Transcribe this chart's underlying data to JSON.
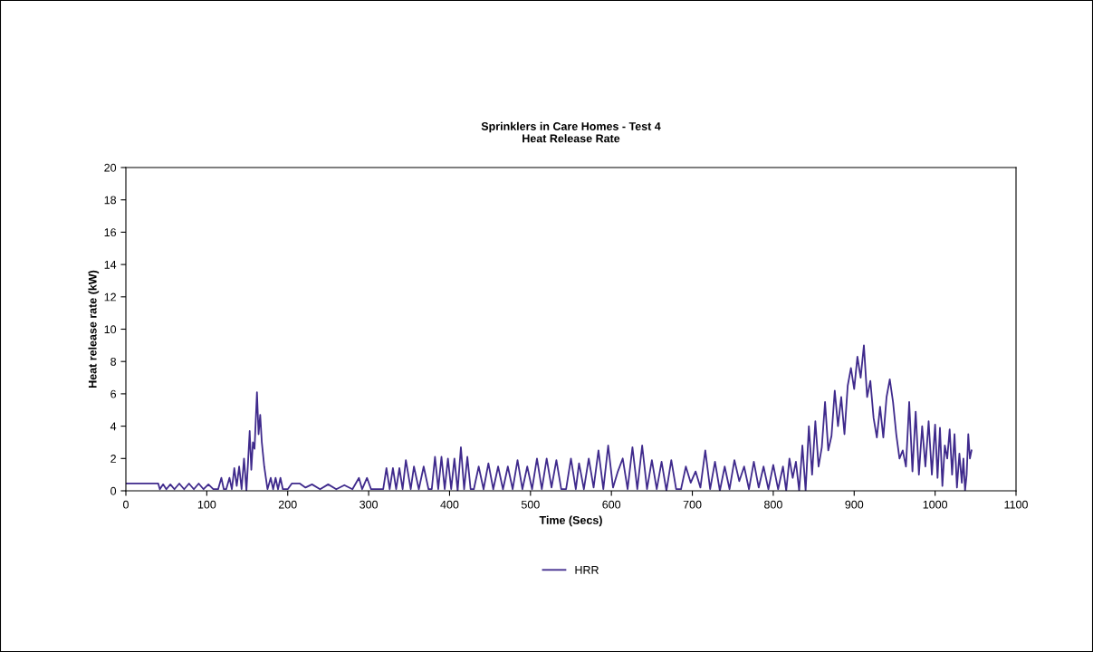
{
  "chart_data": {
    "type": "line",
    "title": "Sprinklers in Care Homes - Test 4\nHeat Release Rate",
    "xlabel": "Time (Secs)",
    "ylabel": "Heat release rate (kW)",
    "xlim": [
      0,
      1100
    ],
    "xticks": [
      0,
      100,
      200,
      300,
      400,
      500,
      600,
      700,
      800,
      900,
      1000,
      1100
    ],
    "ylim": [
      0,
      20
    ],
    "yticks": [
      0,
      2,
      4,
      6,
      8,
      10,
      12,
      14,
      16,
      18,
      20
    ],
    "grid": false,
    "legend": "bottom",
    "marker": "none",
    "line_style": "solid",
    "series": [
      {
        "name": "HRR",
        "color": "#3f2a8c",
        "x": [
          0,
          40,
          42,
          46,
          50,
          55,
          60,
          66,
          72,
          78,
          84,
          90,
          96,
          102,
          108,
          114,
          118,
          121,
          124,
          128,
          131,
          134,
          137,
          140,
          143,
          146,
          149,
          151,
          153,
          155,
          157,
          159,
          162,
          164,
          166,
          168,
          171,
          175,
          179,
          182,
          185,
          188,
          191,
          194,
          197,
          200,
          205,
          215,
          222,
          230,
          240,
          250,
          260,
          270,
          280,
          288,
          292,
          298,
          303,
          310,
          318,
          322,
          326,
          330,
          334,
          338,
          342,
          346,
          352,
          356,
          362,
          368,
          374,
          378,
          382,
          386,
          390,
          394,
          398,
          402,
          406,
          410,
          414,
          418,
          422,
          426,
          430,
          436,
          442,
          448,
          454,
          460,
          466,
          472,
          478,
          484,
          490,
          496,
          502,
          508,
          514,
          520,
          526,
          532,
          538,
          544,
          550,
          556,
          560,
          566,
          572,
          578,
          584,
          590,
          596,
          602,
          608,
          614,
          620,
          626,
          632,
          638,
          644,
          650,
          656,
          662,
          668,
          674,
          680,
          686,
          692,
          698,
          704,
          710,
          716,
          722,
          728,
          734,
          740,
          746,
          752,
          758,
          764,
          770,
          776,
          782,
          788,
          794,
          800,
          806,
          812,
          816,
          820,
          824,
          828,
          832,
          836,
          840,
          844,
          848,
          852,
          856,
          860,
          864,
          868,
          872,
          876,
          880,
          884,
          888,
          892,
          896,
          900,
          904,
          908,
          912,
          916,
          920,
          924,
          928,
          932,
          936,
          940,
          944,
          948,
          952,
          956,
          960,
          964,
          968,
          972,
          976,
          980,
          984,
          988,
          992,
          996,
          1000,
          1003,
          1006,
          1009,
          1012,
          1015,
          1018,
          1021,
          1024,
          1027,
          1030,
          1033,
          1035,
          1037,
          1039,
          1041,
          1043,
          1045
        ],
        "values": [
          0.45,
          0.45,
          0.1,
          0.4,
          0.1,
          0.4,
          0.1,
          0.45,
          0.1,
          0.45,
          0.1,
          0.45,
          0.1,
          0.4,
          0.1,
          0.1,
          0.8,
          0.1,
          0.1,
          0.8,
          0.1,
          1.4,
          0.3,
          1.5,
          0.1,
          2.0,
          0.0,
          1.8,
          3.7,
          1.3,
          3.0,
          2.6,
          6.1,
          3.5,
          4.7,
          3.0,
          1.5,
          0.1,
          0.8,
          0.1,
          0.8,
          0.1,
          0.8,
          0.1,
          0.1,
          0.1,
          0.45,
          0.45,
          0.2,
          0.4,
          0.1,
          0.4,
          0.1,
          0.35,
          0.1,
          0.8,
          0.1,
          0.8,
          0.1,
          0.1,
          0.1,
          1.4,
          0.1,
          1.4,
          0.1,
          1.4,
          0.1,
          1.9,
          0.1,
          1.5,
          0.1,
          1.5,
          0.1,
          0.1,
          2.1,
          0.1,
          2.1,
          0.1,
          2.0,
          0.1,
          2.0,
          0.0,
          2.7,
          0.1,
          2.1,
          0.1,
          0.1,
          1.5,
          0.1,
          1.7,
          0.1,
          1.5,
          0.1,
          1.5,
          0.1,
          1.9,
          0.1,
          1.5,
          0.1,
          2.0,
          0.1,
          2.0,
          0.2,
          1.9,
          0.1,
          0.1,
          2.0,
          0.1,
          1.7,
          0.1,
          2.0,
          0.2,
          2.5,
          0.1,
          2.8,
          0.2,
          1.2,
          2.0,
          0.1,
          2.7,
          0.1,
          2.8,
          0.1,
          1.9,
          0.1,
          1.8,
          0.0,
          1.9,
          0.1,
          0.1,
          1.5,
          0.5,
          1.2,
          0.2,
          2.5,
          0.1,
          1.8,
          0.0,
          1.5,
          0.1,
          1.9,
          0.6,
          1.5,
          0.1,
          1.8,
          0.2,
          1.5,
          0.1,
          1.6,
          0.1,
          1.5,
          0.0,
          2.0,
          0.8,
          1.8,
          0.0,
          2.8,
          0.0,
          4.0,
          1.0,
          4.3,
          1.5,
          2.7,
          5.5,
          2.5,
          3.4,
          6.2,
          4.0,
          5.8,
          3.5,
          6.5,
          7.6,
          6.3,
          8.3,
          7.0,
          9.0,
          5.8,
          6.8,
          4.5,
          3.3,
          5.2,
          3.3,
          5.8,
          6.9,
          5.5,
          3.5,
          2.0,
          2.5,
          1.5,
          5.5,
          1.2,
          4.9,
          1.0,
          4.0,
          1.5,
          4.3,
          1.0,
          4.1,
          0.8,
          3.9,
          0.3,
          2.8,
          2.0,
          3.8,
          1.0,
          3.5,
          0.2,
          2.3,
          0.5,
          2.0,
          0.0,
          1.0,
          3.5,
          2.0,
          2.5
        ]
      }
    ]
  }
}
